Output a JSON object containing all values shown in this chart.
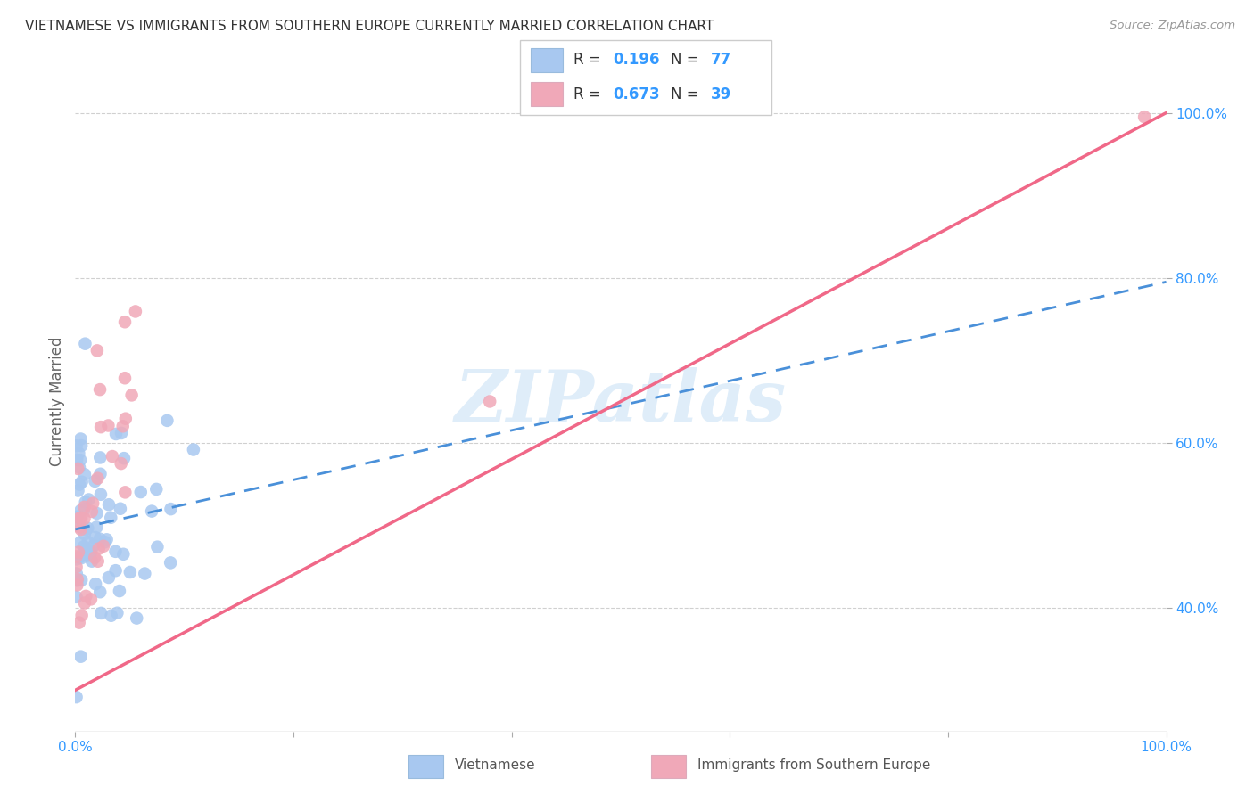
{
  "title": "VIETNAMESE VS IMMIGRANTS FROM SOUTHERN EUROPE CURRENTLY MARRIED CORRELATION CHART",
  "source": "Source: ZipAtlas.com",
  "ylabel": "Currently Married",
  "watermark": "ZIPatlas",
  "blue_R": 0.196,
  "blue_N": 77,
  "pink_R": 0.673,
  "pink_N": 39,
  "blue_color": "#a8c8f0",
  "pink_color": "#f0a8b8",
  "blue_line_color": "#4a90d9",
  "pink_line_color": "#f06888",
  "axis_color": "#3399ff",
  "text_color": "#333333",
  "grid_color": "#d0d0d0",
  "legend_label_blue": "Vietnamese",
  "legend_label_pink": "Immigrants from Southern Europe",
  "xlim": [
    0.0,
    1.0
  ],
  "ylim": [
    0.25,
    1.05
  ],
  "x_ticks": [
    0.0,
    0.2,
    0.4,
    0.6,
    0.8,
    1.0
  ],
  "y_ticks": [
    0.4,
    0.6,
    0.8,
    1.0
  ],
  "x_tick_labels": [
    "0.0%",
    "",
    "",
    "",
    "",
    "100.0%"
  ],
  "y_tick_labels_right": [
    "40.0%",
    "60.0%",
    "80.0%",
    "100.0%"
  ]
}
